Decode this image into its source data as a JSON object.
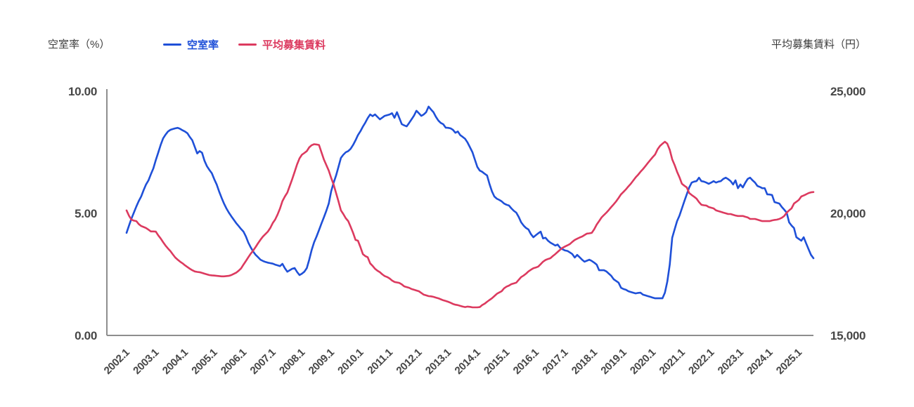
{
  "header": {
    "left_axis_title": "空室率（%）",
    "right_axis_title": "平均募集賃料（円）",
    "legend": [
      {
        "label": "空室率",
        "color": "#1f50d8"
      },
      {
        "label": "平均募集賃料",
        "color": "#dc3a5f"
      }
    ]
  },
  "colors": {
    "background": "#ffffff",
    "axis_line": "#8e8e8e",
    "tick_text": "#474747",
    "vacancy_line": "#1f50d8",
    "rent_line": "#dc3a5f"
  },
  "chart_data": {
    "type": "line",
    "frequency": "monthly",
    "x_start": "2002.1",
    "x_end": "2025.7",
    "grid": false,
    "legend_position": "top",
    "x_tick_labels": [
      "2002.1",
      "2003.1",
      "2004.1",
      "2005.1",
      "2006.1",
      "2007.1",
      "2008.1",
      "2009.1",
      "2010.1",
      "2011.1",
      "2012.1",
      "2013.1",
      "2014.1",
      "2015.1",
      "2016.1",
      "2017.1",
      "2018.1",
      "2019.1",
      "2020.1",
      "2021.1",
      "2022.1",
      "2023.1",
      "2024.1",
      "2025.1"
    ],
    "x_tick_rotation": -45,
    "left_axis": {
      "title": "空室率（%）",
      "range": [
        0,
        10
      ],
      "ticks": [
        {
          "label": "10.00",
          "value": 10
        },
        {
          "label": "5.00",
          "value": 5
        },
        {
          "label": "0.00",
          "value": 0
        }
      ]
    },
    "right_axis": {
      "title": "平均募集賃料（円）",
      "range": [
        15000,
        25000
      ],
      "ticks": [
        {
          "label": "25,000",
          "value": 25000
        },
        {
          "label": "20,000",
          "value": 20000
        },
        {
          "label": "15,000",
          "value": 15000
        }
      ]
    },
    "series": [
      {
        "name": "空室率",
        "axis": "left",
        "color": "#1f50d8",
        "values": [
          4.2,
          4.5,
          4.78,
          5.03,
          5.28,
          5.5,
          5.69,
          5.95,
          6.18,
          6.35,
          6.6,
          6.84,
          7.18,
          7.48,
          7.8,
          8.07,
          8.22,
          8.35,
          8.42,
          8.45,
          8.48,
          8.5,
          8.46,
          8.4,
          8.35,
          8.28,
          8.12,
          7.99,
          7.72,
          7.45,
          7.55,
          7.48,
          7.15,
          6.93,
          6.78,
          6.64,
          6.4,
          6.18,
          5.89,
          5.64,
          5.4,
          5.2,
          5.03,
          4.88,
          4.74,
          4.6,
          4.48,
          4.36,
          4.25,
          4.05,
          3.8,
          3.6,
          3.43,
          3.3,
          3.2,
          3.1,
          3.05,
          3.01,
          2.98,
          2.96,
          2.94,
          2.9,
          2.87,
          2.84,
          2.93,
          2.75,
          2.61,
          2.67,
          2.73,
          2.76,
          2.6,
          2.47,
          2.53,
          2.61,
          2.76,
          3.1,
          3.5,
          3.82,
          4.05,
          4.31,
          4.58,
          4.83,
          5.1,
          5.4,
          5.9,
          6.25,
          6.55,
          6.9,
          7.27,
          7.4,
          7.5,
          7.55,
          7.64,
          7.8,
          7.99,
          8.2,
          8.36,
          8.55,
          8.71,
          8.9,
          9.05,
          8.98,
          9.05,
          8.95,
          8.85,
          8.92,
          8.99,
          9.02,
          9.05,
          9.1,
          8.91,
          9.14,
          8.9,
          8.65,
          8.6,
          8.56,
          8.7,
          8.85,
          9.0,
          9.2,
          9.1,
          8.99,
          9.05,
          9.14,
          9.37,
          9.25,
          9.14,
          8.95,
          8.8,
          8.7,
          8.65,
          8.51,
          8.5,
          8.48,
          8.42,
          8.3,
          8.35,
          8.2,
          8.13,
          8.05,
          7.9,
          7.7,
          7.5,
          7.2,
          6.9,
          6.75,
          6.7,
          6.62,
          6.55,
          6.2,
          5.9,
          5.69,
          5.6,
          5.55,
          5.49,
          5.4,
          5.35,
          5.32,
          5.2,
          5.1,
          5.03,
          4.85,
          4.63,
          4.5,
          4.4,
          4.34,
          4.15,
          4.02,
          4.1,
          4.18,
          4.25,
          3.97,
          4.0,
          3.88,
          3.8,
          3.74,
          3.68,
          3.72,
          3.59,
          3.53,
          3.48,
          3.46,
          3.4,
          3.33,
          3.19,
          3.3,
          3.2,
          3.1,
          3.02,
          3.06,
          3.1,
          3.05,
          2.98,
          2.9,
          2.67,
          2.67,
          2.67,
          2.62,
          2.53,
          2.44,
          2.3,
          2.23,
          2.16,
          1.95,
          1.9,
          1.87,
          1.81,
          1.78,
          1.75,
          1.72,
          1.74,
          1.75,
          1.67,
          1.64,
          1.61,
          1.58,
          1.55,
          1.52,
          1.52,
          1.52,
          1.52,
          1.75,
          2.2,
          2.9,
          4.0,
          4.34,
          4.68,
          4.91,
          5.2,
          5.5,
          5.78,
          6.06,
          6.26,
          6.3,
          6.32,
          6.46,
          6.32,
          6.3,
          6.26,
          6.21,
          6.26,
          6.32,
          6.26,
          6.3,
          6.32,
          6.41,
          6.46,
          6.4,
          6.32,
          6.18,
          6.35,
          6.03,
          6.18,
          6.06,
          6.25,
          6.41,
          6.46,
          6.35,
          6.26,
          6.12,
          6.08,
          6.03,
          6.03,
          5.78,
          5.77,
          5.75,
          5.46,
          5.43,
          5.4,
          5.26,
          5.15,
          5.03,
          4.63,
          4.5,
          4.4,
          4.02,
          3.95,
          3.88,
          4.02,
          3.77,
          3.53,
          3.3,
          3.16
        ]
      },
      {
        "name": "平均募集賃料",
        "axis": "right",
        "color": "#dc3a5f",
        "values": [
          20120,
          19900,
          19740,
          19700,
          19680,
          19560,
          19480,
          19440,
          19400,
          19330,
          19260,
          19260,
          19250,
          19100,
          18970,
          18820,
          18680,
          18560,
          18450,
          18320,
          18190,
          18100,
          18020,
          17950,
          17870,
          17800,
          17730,
          17670,
          17620,
          17600,
          17590,
          17560,
          17530,
          17500,
          17470,
          17460,
          17450,
          17440,
          17430,
          17420,
          17420,
          17430,
          17440,
          17470,
          17520,
          17570,
          17650,
          17740,
          17900,
          18050,
          18200,
          18350,
          18480,
          18620,
          18780,
          18920,
          19050,
          19150,
          19250,
          19400,
          19600,
          19740,
          19950,
          20200,
          20500,
          20690,
          20850,
          21120,
          21400,
          21700,
          22000,
          22250,
          22400,
          22470,
          22550,
          22700,
          22790,
          22830,
          22820,
          22800,
          22500,
          22210,
          21980,
          21750,
          21450,
          21180,
          20830,
          20490,
          20120,
          19970,
          19800,
          19680,
          19450,
          19200,
          18910,
          18880,
          18620,
          18330,
          18250,
          18200,
          17950,
          17850,
          17730,
          17650,
          17590,
          17500,
          17430,
          17390,
          17330,
          17250,
          17190,
          17170,
          17150,
          17090,
          17010,
          16980,
          16950,
          16900,
          16870,
          16840,
          16810,
          16740,
          16670,
          16640,
          16610,
          16600,
          16580,
          16550,
          16520,
          16480,
          16440,
          16410,
          16380,
          16340,
          16290,
          16260,
          16240,
          16210,
          16180,
          16160,
          16180,
          16170,
          16150,
          16150,
          16150,
          16160,
          16240,
          16300,
          16380,
          16450,
          16520,
          16610,
          16700,
          16760,
          16810,
          16930,
          17000,
          17040,
          17100,
          17130,
          17160,
          17280,
          17390,
          17450,
          17530,
          17620,
          17690,
          17750,
          17780,
          17820,
          17920,
          18020,
          18090,
          18130,
          18160,
          18250,
          18330,
          18420,
          18510,
          18590,
          18640,
          18690,
          18740,
          18830,
          18910,
          18960,
          19010,
          19050,
          19110,
          19170,
          19180,
          19200,
          19350,
          19540,
          19680,
          19830,
          19930,
          20030,
          20140,
          20260,
          20370,
          20490,
          20630,
          20780,
          20880,
          20980,
          21100,
          21210,
          21340,
          21470,
          21580,
          21700,
          21810,
          21930,
          22060,
          22180,
          22300,
          22410,
          22620,
          22760,
          22850,
          22930,
          22850,
          22600,
          22210,
          21980,
          21700,
          21470,
          21210,
          21130,
          21060,
          20830,
          20750,
          20680,
          20600,
          20460,
          20350,
          20330,
          20320,
          20260,
          20230,
          20200,
          20120,
          20090,
          20060,
          20030,
          20000,
          19970,
          19970,
          19940,
          19910,
          19890,
          19890,
          19890,
          19860,
          19830,
          19770,
          19770,
          19770,
          19740,
          19710,
          19680,
          19680,
          19680,
          19680,
          19710,
          19730,
          19740,
          19770,
          19820,
          19890,
          20030,
          20120,
          20200,
          20400,
          20470,
          20550,
          20690,
          20730,
          20780,
          20830,
          20860,
          20870
        ]
      }
    ]
  }
}
